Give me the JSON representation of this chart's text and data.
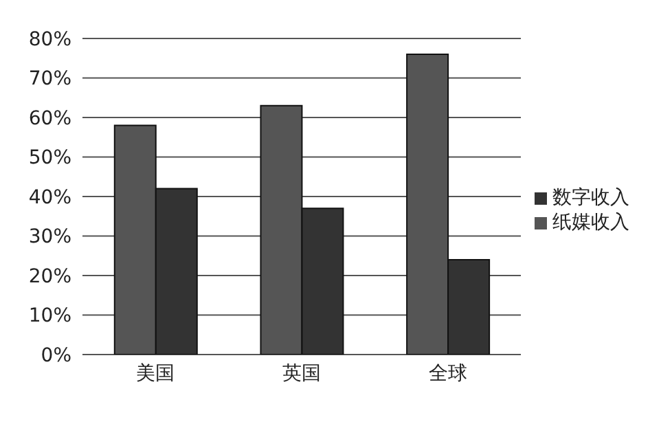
{
  "chart_data": {
    "type": "bar",
    "categories": [
      "美国",
      "英国",
      "全球"
    ],
    "series": [
      {
        "name": "纸媒收入",
        "color": "#555555",
        "values": [
          58,
          63,
          76
        ]
      },
      {
        "name": "数字收入",
        "color": "#333333",
        "values": [
          42,
          37,
          24
        ]
      }
    ],
    "ylim": [
      0,
      80
    ],
    "yticks": [
      {
        "value": 0,
        "label": "0%"
      },
      {
        "value": 10,
        "label": "10%"
      },
      {
        "value": 20,
        "label": "20%"
      },
      {
        "value": 30,
        "label": "30%"
      },
      {
        "value": 40,
        "label": "40%"
      },
      {
        "value": 50,
        "label": "50%"
      },
      {
        "value": 60,
        "label": "60%"
      },
      {
        "value": 70,
        "label": "70%"
      },
      {
        "value": 80,
        "label": "80%"
      }
    ],
    "grid": "y",
    "legend": "right"
  }
}
